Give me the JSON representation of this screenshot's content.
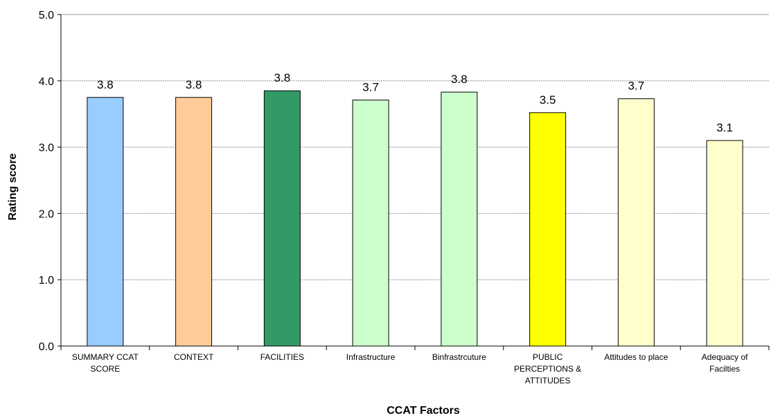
{
  "chart_data": {
    "type": "bar",
    "title": "",
    "xlabel": "CCAT Factors",
    "ylabel": "Rating score",
    "ylim": [
      0,
      5
    ],
    "yticks": [
      "0.0",
      "1.0",
      "2.0",
      "3.0",
      "4.0",
      "5.0"
    ],
    "grid": true,
    "categories": [
      [
        "SUMMARY CCAT",
        "SCORE"
      ],
      [
        "CONTEXT"
      ],
      [
        "FACILITIES"
      ],
      [
        "Infrastructure"
      ],
      [
        "Binfrastrcuture"
      ],
      [
        "PUBLIC",
        "PERCEPTIONS &",
        "ATTITUDES"
      ],
      [
        "Attitudes to place"
      ],
      [
        "Adequacy of",
        "Facilties"
      ]
    ],
    "values": [
      3.75,
      3.75,
      3.85,
      3.71,
      3.83,
      3.52,
      3.73,
      3.1
    ],
    "value_labels": [
      "3.8",
      "3.8",
      "3.8",
      "3.7",
      "3.8",
      "3.5",
      "3.7",
      "3.1"
    ],
    "colors": [
      "#99ccff",
      "#ffcc99",
      "#339966",
      "#ccffcc",
      "#ccffcc",
      "#ffff00",
      "#ffffcc",
      "#ffffcc"
    ]
  }
}
